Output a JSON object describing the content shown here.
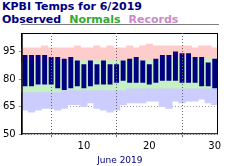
{
  "chart_data": {
    "type": "bar",
    "title": "KPBI Temps for 6/2019",
    "x_label": "June 2019",
    "x": [
      1,
      2,
      3,
      4,
      5,
      6,
      7,
      8,
      9,
      10,
      11,
      12,
      13,
      14,
      15,
      16,
      17,
      18,
      19,
      20,
      21,
      22,
      23,
      24,
      25,
      26,
      27,
      28,
      29,
      30
    ],
    "xlim": [
      0.5,
      30.5
    ],
    "xticks": [
      10,
      20,
      30
    ],
    "ylim": [
      50,
      105
    ],
    "yticks": [
      50,
      65,
      80,
      95
    ],
    "grid": true,
    "legend": "top left",
    "series": [
      {
        "name": "Observed",
        "color": "#000080",
        "values": [
          [
            76,
            93
          ],
          [
            76,
            93
          ],
          [
            77,
            93
          ],
          [
            77,
            93
          ],
          [
            77,
            92
          ],
          [
            75,
            92
          ],
          [
            74,
            91
          ],
          [
            75,
            92
          ],
          [
            76,
            90
          ],
          [
            75,
            88
          ],
          [
            76,
            90
          ],
          [
            77,
            88
          ],
          [
            77,
            90
          ],
          [
            77,
            88
          ],
          [
            78,
            88
          ],
          [
            79,
            90
          ],
          [
            78,
            91
          ],
          [
            78,
            92
          ],
          [
            78,
            90
          ],
          [
            77,
            88
          ],
          [
            78,
            91
          ],
          [
            79,
            93
          ],
          [
            79,
            93
          ],
          [
            79,
            95
          ],
          [
            78,
            94
          ],
          [
            78,
            94
          ],
          [
            78,
            92
          ],
          [
            76,
            92
          ],
          [
            76,
            89
          ],
          [
            75,
            91
          ]
        ]
      },
      {
        "name": "Normals",
        "color": "#33aa33",
        "values": [
          [
            73,
            89
          ],
          [
            73,
            89
          ],
          [
            73,
            89
          ],
          [
            73,
            89
          ],
          [
            73,
            89
          ],
          [
            73,
            89
          ],
          [
            74,
            89
          ],
          [
            74,
            90
          ],
          [
            74,
            90
          ],
          [
            74,
            90
          ],
          [
            74,
            90
          ],
          [
            74,
            90
          ],
          [
            74,
            90
          ],
          [
            74,
            90
          ],
          [
            74,
            90
          ],
          [
            74,
            90
          ],
          [
            75,
            90
          ],
          [
            75,
            90
          ],
          [
            75,
            90
          ],
          [
            75,
            90
          ],
          [
            75,
            90
          ],
          [
            75,
            90
          ],
          [
            75,
            91
          ],
          [
            75,
            91
          ],
          [
            75,
            91
          ],
          [
            75,
            91
          ],
          [
            75,
            91
          ],
          [
            75,
            91
          ],
          [
            75,
            91
          ],
          [
            75,
            91
          ]
        ]
      },
      {
        "name": "Records",
        "color": "#cc88cc",
        "values": [
          [
            63,
            97
          ],
          [
            62,
            97
          ],
          [
            63,
            97
          ],
          [
            64,
            98
          ],
          [
            64,
            97
          ],
          [
            63,
            97
          ],
          [
            64,
            97
          ],
          [
            66,
            97
          ],
          [
            66,
            98
          ],
          [
            65,
            97
          ],
          [
            67,
            97
          ],
          [
            64,
            98
          ],
          [
            63,
            97
          ],
          [
            62,
            98
          ],
          [
            63,
            97
          ],
          [
            66,
            97
          ],
          [
            67,
            98
          ],
          [
            67,
            97
          ],
          [
            67,
            98
          ],
          [
            68,
            99
          ],
          [
            68,
            98
          ],
          [
            65,
            98
          ],
          [
            64,
            98
          ],
          [
            68,
            98
          ],
          [
            67,
            98
          ],
          [
            68,
            98
          ],
          [
            68,
            97
          ],
          [
            69,
            98
          ],
          [
            67,
            98
          ],
          [
            66,
            97
          ]
        ]
      }
    ]
  }
}
